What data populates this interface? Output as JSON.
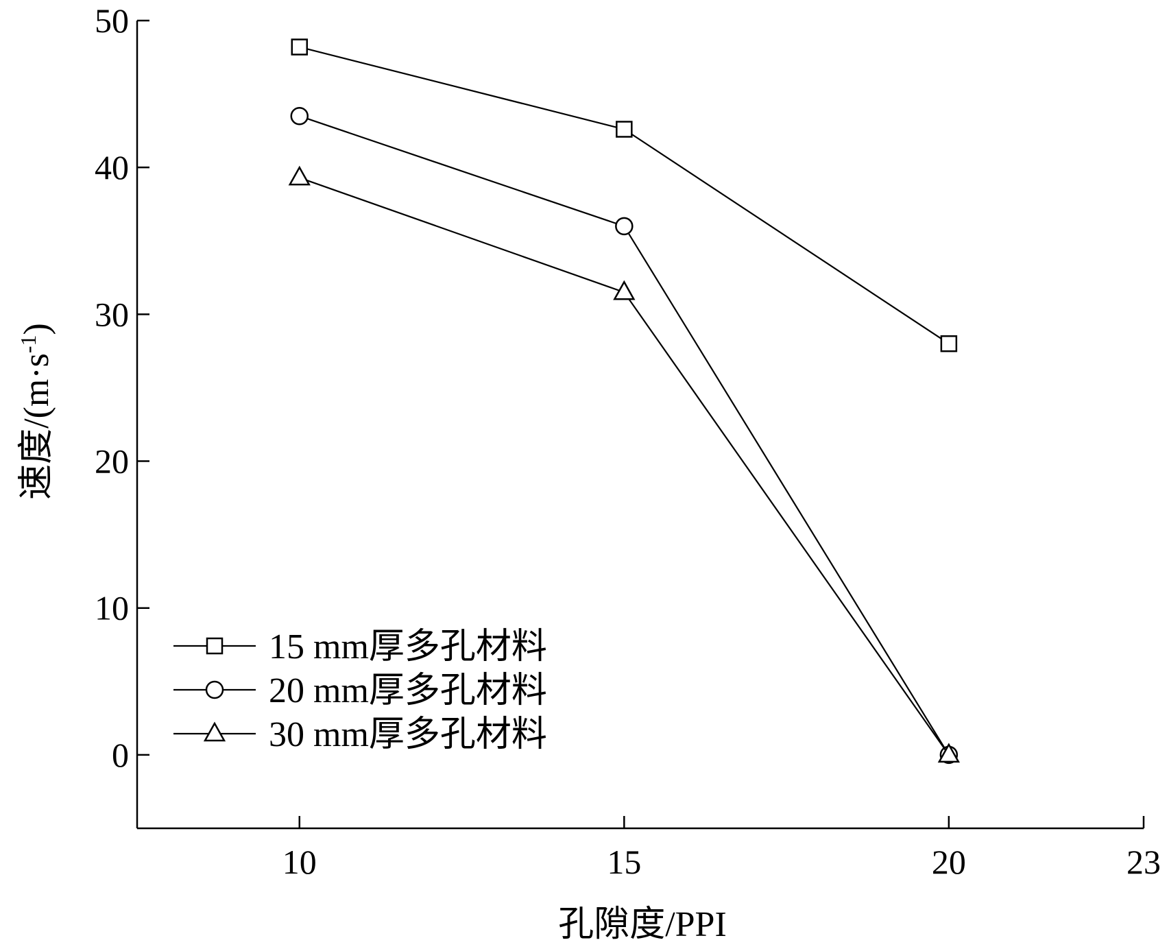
{
  "chart_data": {
    "type": "line",
    "xlabel": "孔隙度/PPI",
    "ylabel": "速度/(m·s",
    "ylabel_sup": "-1",
    "ylabel_tail": ")",
    "xlim": [
      7.5,
      23
    ],
    "ylim": [
      -5,
      50
    ],
    "x_ticks": [
      10,
      15,
      20,
      23
    ],
    "y_ticks": [
      0,
      10,
      20,
      30,
      40,
      50
    ],
    "grid": false,
    "legend_position": "bottom-left",
    "series": [
      {
        "name": "15 mm厚多孔材料",
        "marker": "square",
        "x": [
          10,
          15,
          20
        ],
        "y": [
          48.2,
          42.6,
          28.0
        ]
      },
      {
        "name": "20 mm厚多孔材料",
        "marker": "circle",
        "x": [
          10,
          15,
          20
        ],
        "y": [
          43.5,
          36.0,
          0.0
        ]
      },
      {
        "name": "30 mm厚多孔材料",
        "marker": "triangle",
        "x": [
          10,
          15,
          20
        ],
        "y": [
          39.3,
          31.5,
          0.0
        ]
      }
    ]
  }
}
